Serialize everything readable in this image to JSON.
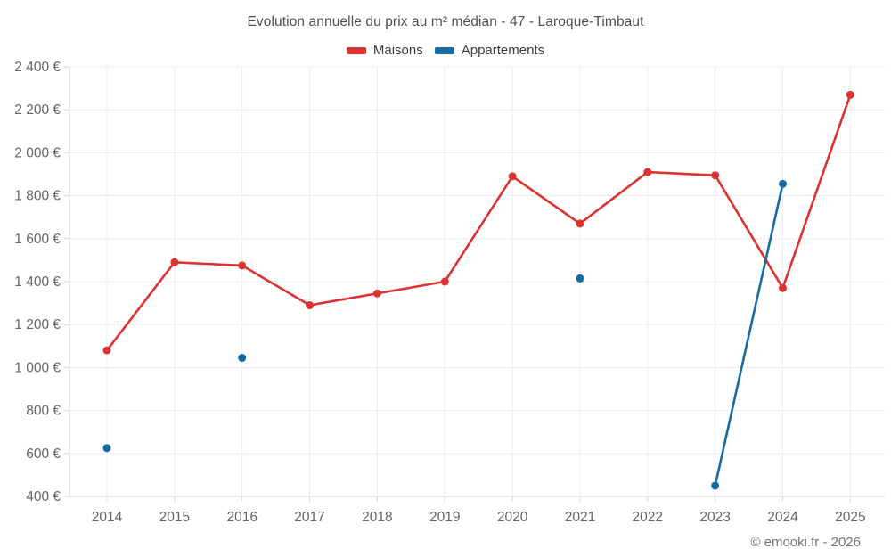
{
  "title": "Evolution annuelle du prix au m² médian - 47 - Laroque-Timbaut",
  "legend": [
    {
      "label": "Maisons",
      "color": "#db3232"
    },
    {
      "label": "Appartements",
      "color": "#176ba2"
    }
  ],
  "footer": {
    "copyright": "© emooki.fr - 2026"
  },
  "colors": {
    "grid": "#ececec",
    "axis": "#d6d6d6",
    "tick_text": "#666666"
  },
  "chart_data": {
    "type": "line",
    "categories": [
      "2014",
      "2015",
      "2016",
      "2017",
      "2018",
      "2019",
      "2020",
      "2021",
      "2022",
      "2023",
      "2024",
      "2025"
    ],
    "series": [
      {
        "name": "Maisons",
        "color": "#db3232",
        "values": [
          1080,
          1490,
          1475,
          1290,
          1345,
          1400,
          1890,
          1670,
          1910,
          1895,
          1370,
          2270
        ]
      },
      {
        "name": "Appartements",
        "color": "#176ba2",
        "values": [
          625,
          null,
          1045,
          null,
          null,
          null,
          null,
          1415,
          null,
          450,
          1855,
          null
        ]
      }
    ],
    "title": "Evolution annuelle du prix au m² médian - 47 - Laroque-Timbaut",
    "xlabel": "",
    "ylabel": "",
    "ylim": [
      400,
      2400
    ],
    "yticks": [
      400,
      600,
      800,
      1000,
      1200,
      1400,
      1600,
      1800,
      2000,
      2200,
      2400
    ],
    "ytick_labels": [
      "400 €",
      "600 €",
      "800 €",
      "1 000 €",
      "1 200 €",
      "1 400 €",
      "1 600 €",
      "1 800 €",
      "2 000 €",
      "2 200 €",
      "2 400 €"
    ],
    "grid": true,
    "legend_position": "top",
    "span_gaps": false
  }
}
